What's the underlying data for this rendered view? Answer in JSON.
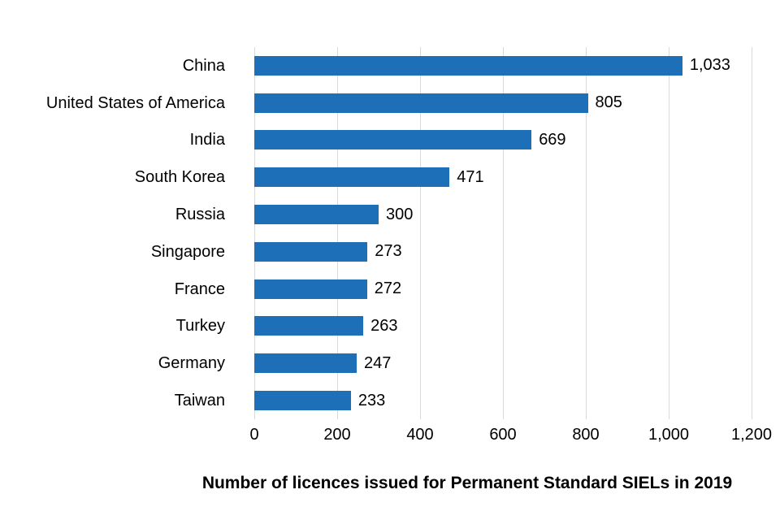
{
  "chart_data": {
    "type": "bar",
    "orientation": "horizontal",
    "title": "Number of licences issued for Permanent Standard SIELs in 2019",
    "categories": [
      "China",
      "United States of America",
      "India",
      "South Korea",
      "Russia",
      "Singapore",
      "France",
      "Turkey",
      "Germany",
      "Taiwan"
    ],
    "values": [
      1033,
      805,
      669,
      471,
      300,
      273,
      272,
      263,
      247,
      233
    ],
    "value_labels": [
      "1,033",
      "805",
      "669",
      "471",
      "300",
      "273",
      "272",
      "263",
      "247",
      "233"
    ],
    "xlabel": "",
    "ylabel": "",
    "xlim": [
      0,
      1200
    ],
    "xticks": [
      0,
      200,
      400,
      600,
      800,
      1000,
      1200
    ],
    "xtick_labels": [
      "0",
      "200",
      "400",
      "600",
      "800",
      "1,000",
      "1,200"
    ],
    "grid": true,
    "legend": false,
    "bar_color": "#1d70b8",
    "gridline_color": "#d9d9d9",
    "background_color": "#ffffff",
    "text_color": "#000000"
  }
}
